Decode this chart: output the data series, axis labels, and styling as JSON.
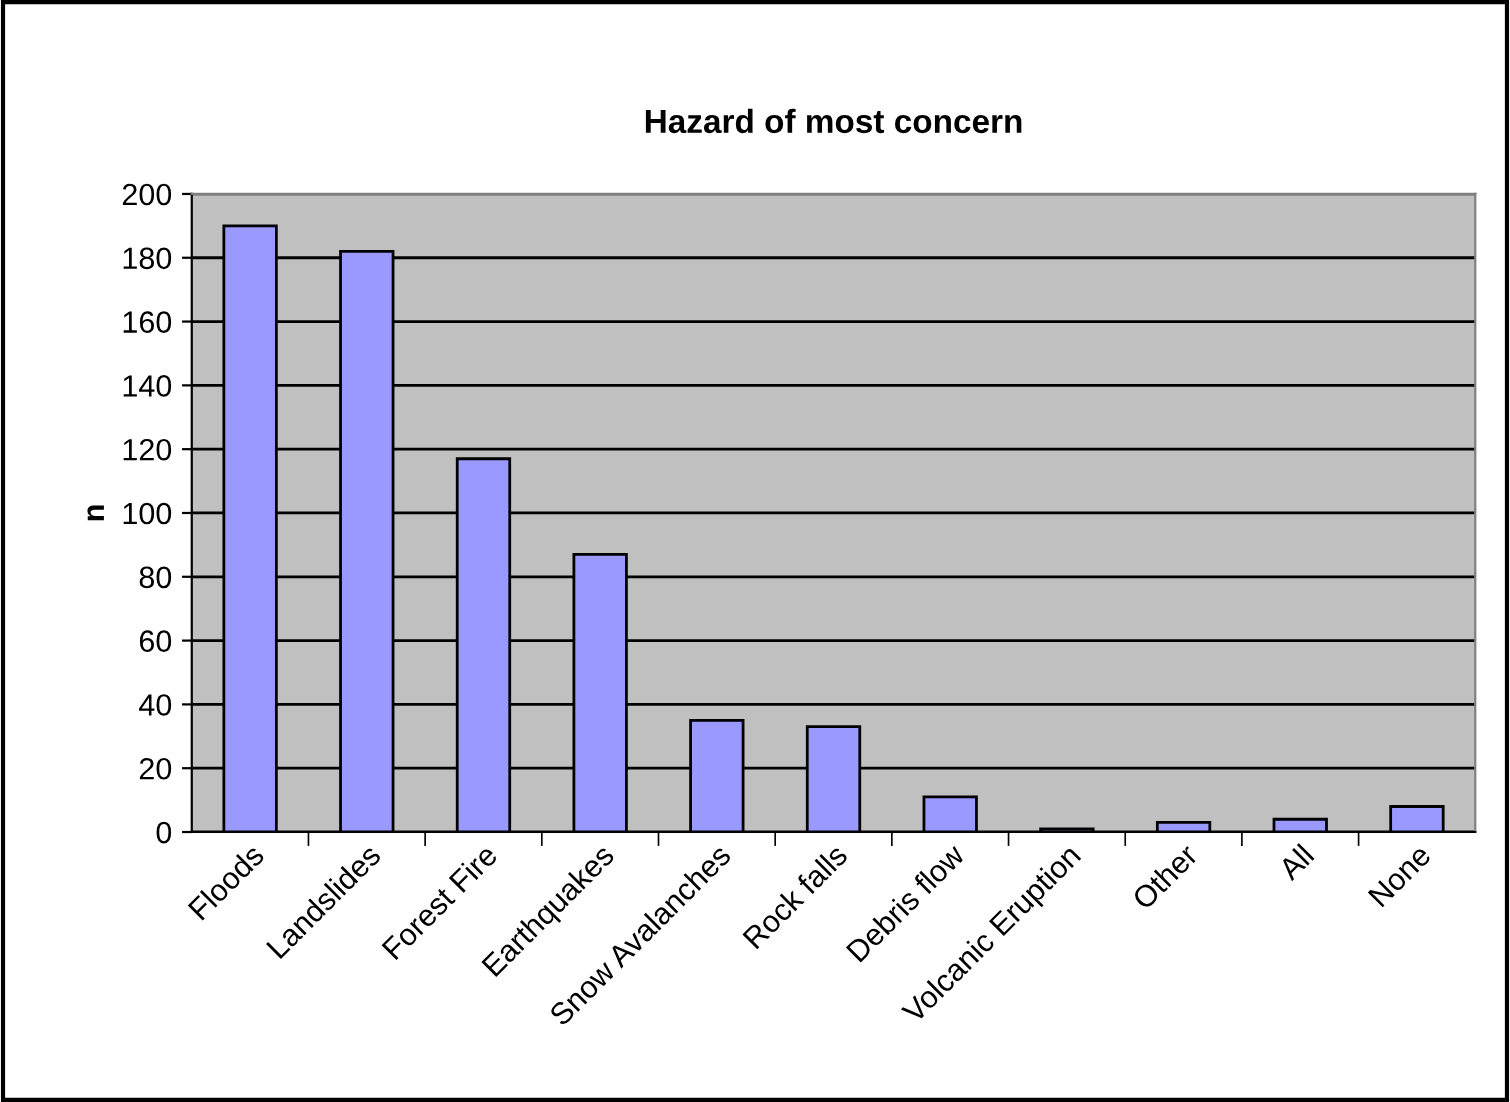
{
  "chart_data": {
    "type": "bar",
    "title": "Hazard of most concern",
    "ylabel": "n",
    "categories": [
      "Floods",
      "Landslides",
      "Forest Fire",
      "Earthquakes",
      "Snow Avalanches",
      "Rock falls",
      "Debris flow",
      "Volcanic Eruption",
      "Other",
      "All",
      "None"
    ],
    "values": [
      190,
      182,
      117,
      87,
      35,
      33,
      11,
      1,
      3,
      4,
      8
    ],
    "color": "#9999ff",
    "ylim": [
      0,
      200
    ],
    "yticks": [
      0,
      20,
      40,
      60,
      80,
      100,
      120,
      140,
      160,
      180,
      200
    ],
    "grid": "y",
    "legend": false
  }
}
